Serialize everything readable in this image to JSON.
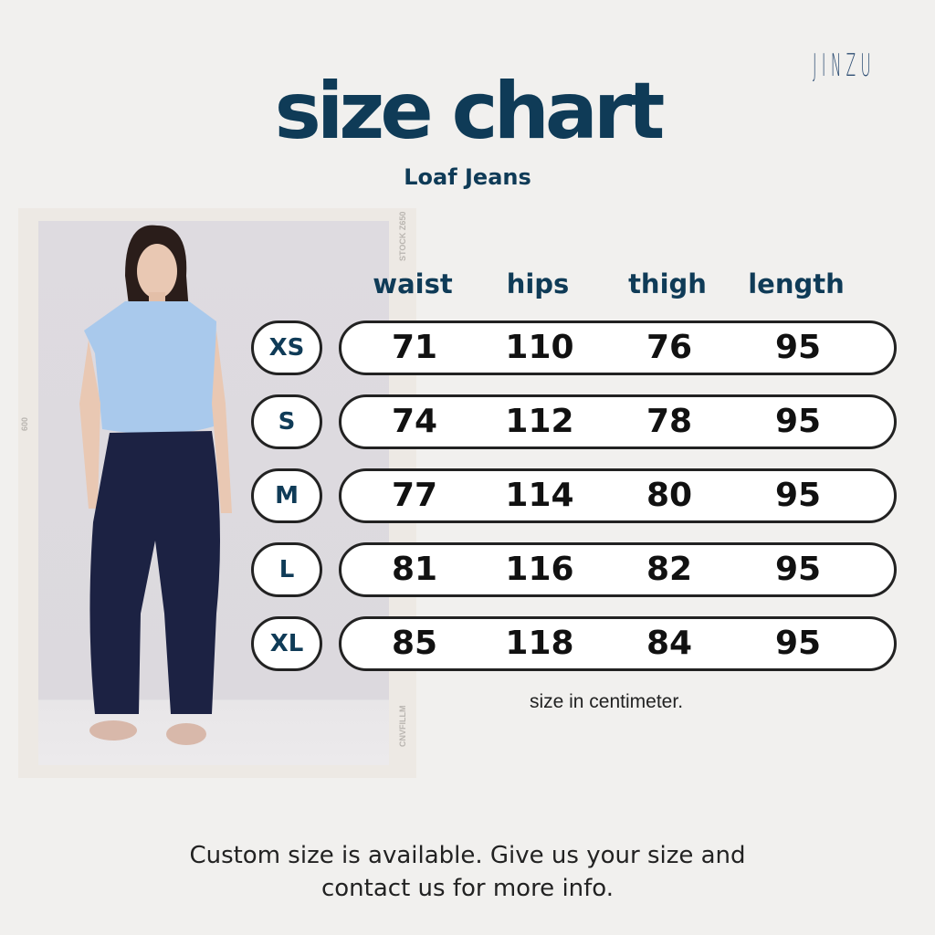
{
  "brand": "JINZU",
  "title": "size chart",
  "subtitle": "Loaf Jeans",
  "film_edge": {
    "top_right": "STOCK Z650",
    "left": "600",
    "bottom_right": "CNVFILLM"
  },
  "table": {
    "headers": [
      "waist",
      "hips",
      "thigh",
      "length"
    ],
    "rows": [
      {
        "size": "XS",
        "values": [
          "71",
          "110",
          "76",
          "95"
        ]
      },
      {
        "size": "S",
        "values": [
          "74",
          "112",
          "78",
          "95"
        ]
      },
      {
        "size": "M",
        "values": [
          "77",
          "114",
          "80",
          "95"
        ]
      },
      {
        "size": "L",
        "values": [
          "81",
          "116",
          "82",
          "95"
        ]
      },
      {
        "size": "XL",
        "values": [
          "85",
          "118",
          "84",
          "95"
        ]
      }
    ]
  },
  "unit_note": "size in centimeter.",
  "footer": {
    "line1": "Custom size is available. Give us your size and",
    "line2": "contact us for more info."
  },
  "colors": {
    "accent": "#0f3b57",
    "background": "#f1f0ee",
    "brand": "#2e4e74"
  }
}
